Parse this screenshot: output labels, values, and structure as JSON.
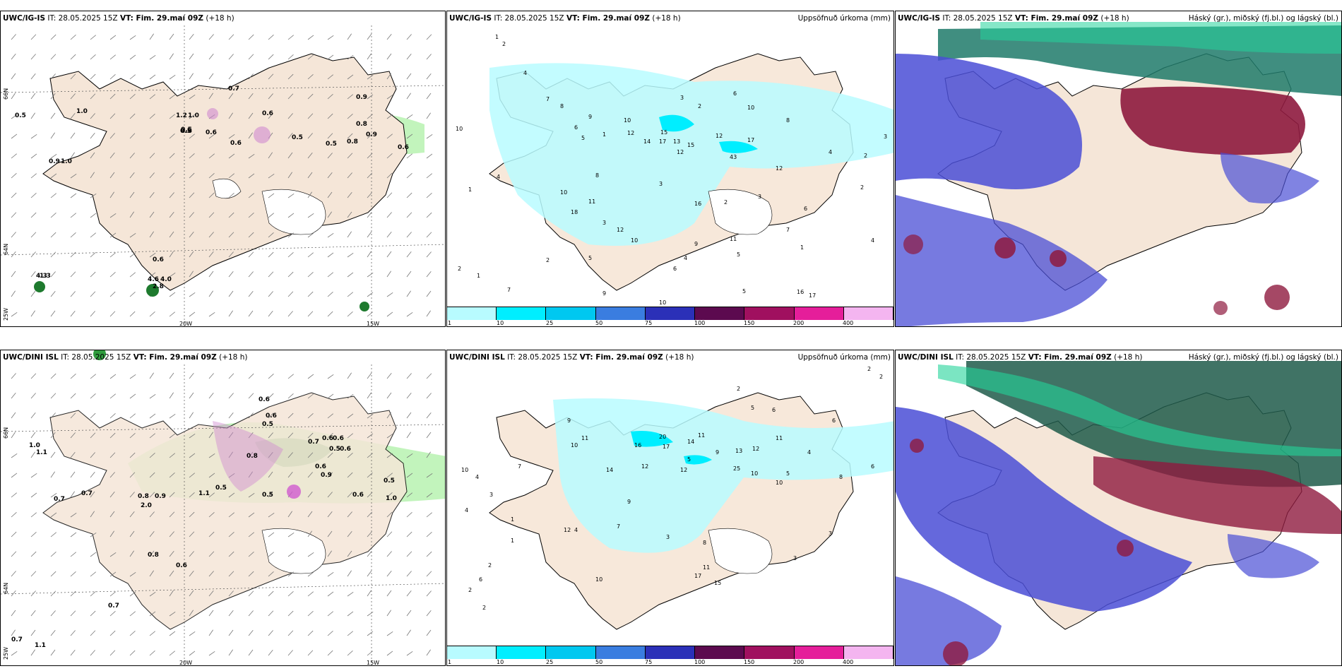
{
  "panels": {
    "p1": {
      "model": "UWC/IG-IS",
      "it": "IT: 28.05.2025 15Z",
      "vt": "VT: Fim. 29.maí 09Z",
      "lead": "(+18 h)"
    },
    "p2": {
      "model": "UWC/IG-IS",
      "it": "IT: 28.05.2025 15Z",
      "vt": "VT: Fim. 29.maí 09Z",
      "lead": "(+18 h)",
      "right": "Uppsöfnuð úrkoma (mm)"
    },
    "p3": {
      "model": "UWC/IG-IS",
      "it": "IT: 28.05.2025 15Z",
      "vt": "VT: Fim. 29.maí 09Z",
      "lead": "(+18 h)",
      "right": "Háský (gr.), miðský (fj.bl.) og lágský (bl.)"
    },
    "p4": {
      "model": "UWC/DINI ISL",
      "it": "IT: 28.05.2025 15Z",
      "vt": "VT: Fim. 29.maí 09Z",
      "lead": "(+18 h)"
    },
    "p5": {
      "model": "UWC/DINI ISL",
      "it": "IT: 28.05.2025 15Z",
      "vt": "VT: Fim. 29.maí 09Z",
      "lead": "(+18 h)",
      "right": "Uppsöfnuð úrkoma (mm)"
    },
    "p6": {
      "model": "UWC/DINI ISL",
      "it": "IT: 28.05.2025 15Z",
      "vt": "VT: Fim. 29.maí 09Z",
      "lead": "(+18 h)",
      "right": "Háský (gr.), miðský (fj.bl.) og lágský (bl.)"
    }
  },
  "axes": {
    "lon1": "20W",
    "lon2": "15W",
    "lat1": "66N",
    "lat2": "64N",
    "lon0": "25W"
  },
  "colorbar": {
    "ticks": [
      "1",
      "10",
      "25",
      "50",
      "75",
      "100",
      "150",
      "200",
      "400"
    ],
    "colors": [
      "#b8fbff",
      "#00eeff",
      "#00c8f0",
      "#3a7de0",
      "#2b30b8",
      "#5c0a4f",
      "#a0105f",
      "#e51e9a",
      "#f4b5f0"
    ]
  },
  "p1_labels": [
    "0.5",
    "1.0",
    "0.7",
    "0.6",
    "0.5",
    "0.5",
    "0.6",
    "0.6",
    "0.5",
    "0.9",
    "0.9",
    "1.0",
    "0.8",
    "0.9",
    "0.8",
    "0.6",
    "0.6",
    "0.5",
    "1.3",
    "1.2",
    "1.0",
    "0.6",
    "4.3",
    "4.6",
    "4.0",
    "2.8"
  ],
  "p4_labels": [
    "1.0",
    "1.1",
    "0.7",
    "0.7",
    "0.8",
    "2.0",
    "0.9",
    "1.1",
    "0.5",
    "0.6",
    "0.6",
    "0.5",
    "0.7",
    "0.6",
    "0.6",
    "0.5",
    "0.6",
    "0.8",
    "0.6",
    "0.9",
    "0.5",
    "0.6",
    "0.5",
    "1.0",
    "0.8",
    "0.6",
    "0.7",
    "1.1",
    "0.7"
  ],
  "p2_labels": [
    "1",
    "2",
    "10",
    "4",
    "7",
    "8",
    "6",
    "5",
    "9",
    "1",
    "10",
    "12",
    "14",
    "17",
    "15",
    "12",
    "13",
    "15",
    "12",
    "17",
    "43",
    "12",
    "3",
    "6",
    "10",
    "8",
    "4",
    "2",
    "3",
    "18",
    "11",
    "16",
    "12",
    "10",
    "3",
    "2",
    "7",
    "5",
    "6",
    "4",
    "3",
    "9",
    "11",
    "5",
    "6",
    "7",
    "10",
    "1",
    "2",
    "1",
    "2",
    "16",
    "17",
    "5",
    "3",
    "1",
    "9",
    "10",
    "4",
    "8",
    "4",
    "2",
    "2"
  ],
  "p5_labels": [
    "2",
    "2",
    "9",
    "10",
    "11",
    "16",
    "20",
    "17",
    "13",
    "12",
    "25",
    "10",
    "10",
    "9",
    "12",
    "14",
    "11",
    "10",
    "12",
    "14",
    "17",
    "11",
    "15",
    "8",
    "6",
    "5",
    "4",
    "3",
    "2",
    "1",
    "7",
    "6",
    "8",
    "3",
    "9",
    "5",
    "2",
    "4",
    "6",
    "7",
    "3",
    "2",
    "5",
    "10",
    "4",
    "2",
    "3",
    "1",
    "4",
    "6",
    "11",
    "12"
  ]
}
